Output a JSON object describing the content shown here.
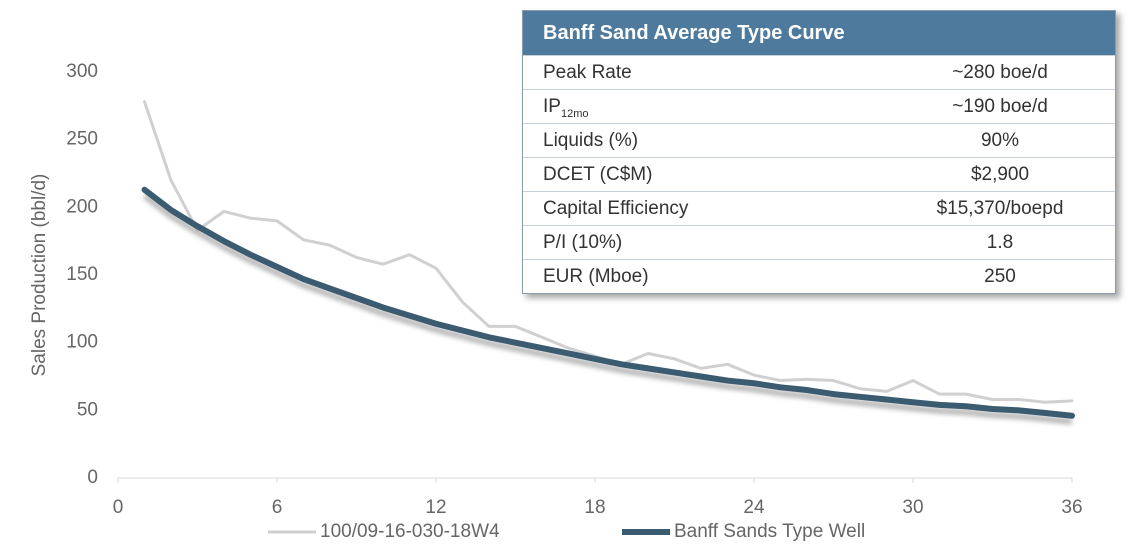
{
  "chart_data": {
    "type": "line",
    "y_label": "Sales Production (bbl/d)",
    "x": [
      1,
      2,
      3,
      4,
      5,
      6,
      7,
      8,
      9,
      10,
      11,
      12,
      13,
      14,
      15,
      16,
      17,
      18,
      19,
      20,
      21,
      22,
      23,
      24,
      25,
      26,
      27,
      28,
      29,
      30,
      31,
      32,
      33,
      34,
      35,
      36
    ],
    "series": [
      {
        "name": "100/09-16-030-18W4",
        "color": "#d0d0d0",
        "width": 3,
        "values": [
          278,
          220,
          183,
          197,
          192,
          190,
          176,
          172,
          163,
          158,
          165,
          155,
          130,
          112,
          112,
          104,
          96,
          90,
          84,
          92,
          88,
          81,
          84,
          76,
          72,
          73,
          72,
          66,
          64,
          72,
          62,
          62,
          58,
          58,
          56,
          57
        ]
      },
      {
        "name": "Banff Sands Type Well",
        "color": "#3b5b70",
        "width": 6,
        "values": [
          213,
          198,
          186,
          175,
          165,
          156,
          147,
          140,
          133,
          126,
          120,
          114,
          109,
          104,
          100,
          96,
          92,
          88,
          84,
          81,
          78,
          75,
          72,
          70,
          67,
          65,
          62,
          60,
          58,
          56,
          54,
          53,
          51,
          50,
          48,
          46
        ]
      }
    ],
    "xlim": [
      0,
      36
    ],
    "xticks": [
      0,
      6,
      12,
      18,
      24,
      30,
      36
    ],
    "ylim": [
      0,
      300
    ],
    "yticks": [
      0,
      50,
      100,
      150,
      200,
      250,
      300
    ],
    "grid": false,
    "legend": "bottom"
  },
  "table": {
    "title": "Banff Sand Average Type Curve",
    "rows": [
      {
        "label": "Peak Rate",
        "value": "~280 boe/d"
      },
      {
        "label": "IP",
        "sub": "12mo",
        "value": "~190 boe/d"
      },
      {
        "label": "Liquids (%)",
        "value": "90%"
      },
      {
        "label": "DCET (C$M)",
        "value": "$2,900"
      },
      {
        "label": "Capital Efficiency",
        "value": "$15,370/boepd"
      },
      {
        "label": "P/I (10%)",
        "value": "1.8"
      },
      {
        "label": "EUR (Mboe)",
        "value": "250"
      }
    ]
  }
}
